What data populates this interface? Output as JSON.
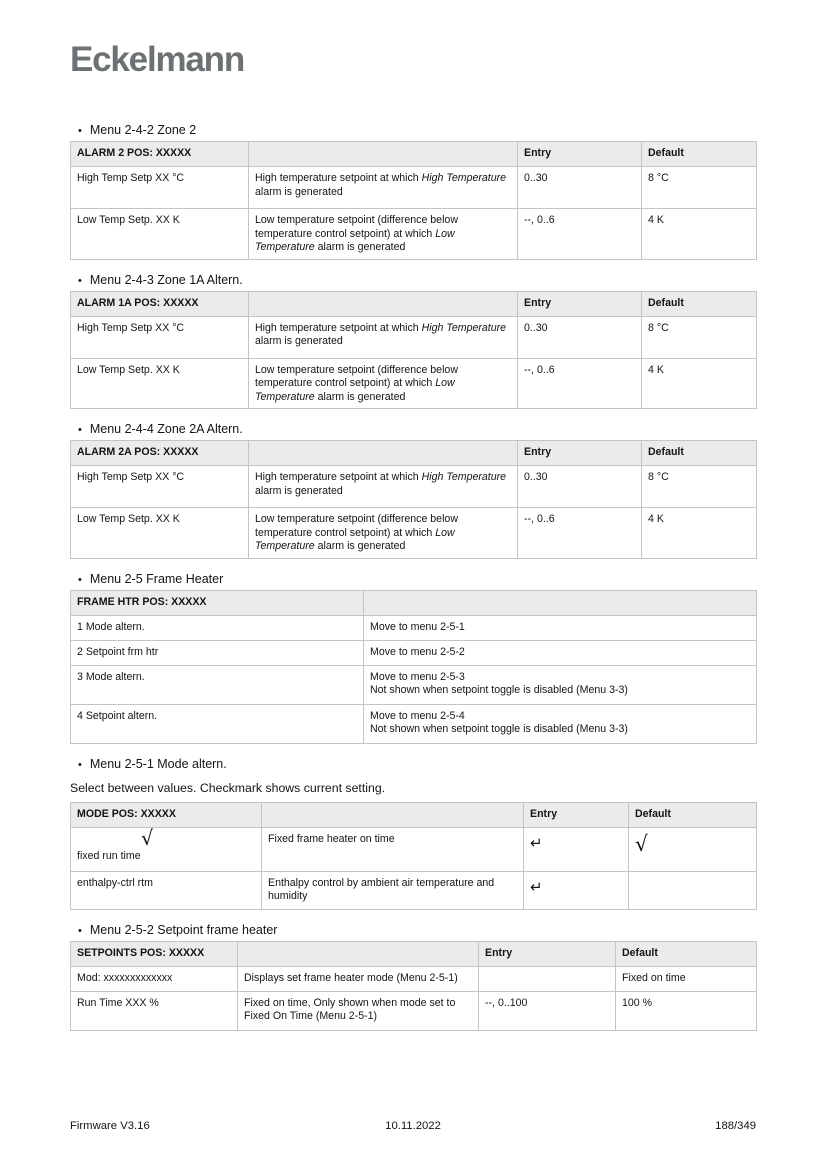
{
  "logo_text": "Eckelmann",
  "symbols": {
    "bullet": "•",
    "enter": "↵",
    "check": "√"
  },
  "colors": {
    "logo_gray": "#6c7173",
    "table_header_bg": "#ebebeb",
    "table_border": "#c4c4c4"
  },
  "alarm_sections": [
    {
      "menu_title": "Menu 2-4-2 Zone 2",
      "header_col1": "ALARM 2 POS: XXXXX",
      "header_entry": "Entry",
      "header_default": "Default",
      "rows": [
        {
          "label": "High Temp Setp XX °C",
          "desc_pre": "High temperature setpoint at which ",
          "desc_italic": "High Temperature",
          "desc_post": " alarm is generated",
          "entry": "0..30",
          "default": "8 °C"
        },
        {
          "label": "Low Temp Setp. XX K",
          "desc_pre": "Low temperature setpoint (difference below temperature control setpoint) at which ",
          "desc_italic": "Low Temperature",
          "desc_post": " alarm is generated",
          "entry": "--, 0..6",
          "default": "4 K"
        }
      ]
    },
    {
      "menu_title": "Menu 2-4-3 Zone 1A Altern.",
      "header_col1": "ALARM 1A POS: XXXXX",
      "header_entry": "Entry",
      "header_default": "Default",
      "rows": [
        {
          "label": "High Temp Setp XX °C",
          "desc_pre": "High temperature setpoint at which ",
          "desc_italic": "High Temperature",
          "desc_post": " alarm is generated",
          "entry": "0..30",
          "default": "8 °C"
        },
        {
          "label": "Low Temp Setp. XX K",
          "desc_pre": "Low temperature setpoint (difference below temperature control setpoint) at which ",
          "desc_italic": "Low Temperature",
          "desc_post": " alarm is generated",
          "entry": "--, 0..6",
          "default": "4 K"
        }
      ]
    },
    {
      "menu_title": "Menu 2-4-4 Zone 2A Altern.",
      "header_col1": "ALARM 2A POS: XXXXX",
      "header_entry": "Entry",
      "header_default": "Default",
      "rows": [
        {
          "label": "High Temp Setp XX °C",
          "desc_pre": "High temperature setpoint at which ",
          "desc_italic": "High Temperature",
          "desc_post": " alarm is generated",
          "entry": "0..30",
          "default": "8 °C"
        },
        {
          "label": "Low Temp Setp. XX K",
          "desc_pre": "Low temperature setpoint (difference below temperature control setpoint) at which ",
          "desc_italic": "Low Temperature",
          "desc_post": " alarm is generated",
          "entry": "--, 0..6",
          "default": "4 K"
        }
      ]
    }
  ],
  "frame_heater": {
    "menu_title": "Menu 2-5 Frame Heater",
    "header_col1": "FRAME HTR POS: XXXXX",
    "rows": [
      {
        "label": "1 Mode altern.",
        "line1": "Move to menu 2-5-1",
        "line2": ""
      },
      {
        "label": "2 Setpoint frm htr",
        "line1": "Move to menu 2-5-2",
        "line2": ""
      },
      {
        "label": "3 Mode altern.",
        "line1": "Move to menu 2-5-3",
        "line2": "Not shown when setpoint toggle is disabled (Menu 3-3)"
      },
      {
        "label": "4 Setpoint altern.",
        "line1": "Move to menu 2-5-4",
        "line2": "Not shown when setpoint toggle is disabled (Menu 3-3)"
      }
    ]
  },
  "mode_section": {
    "menu_title": "Menu 2-5-1 Mode altern.",
    "intro": "Select between values. Checkmark shows current setting.",
    "header_col1": "MODE POS: XXXXX",
    "header_entry": "Entry",
    "header_default": "Default",
    "rows": [
      {
        "label": "fixed run time",
        "label_check": "√",
        "desc": "Fixed frame heater on time",
        "entry_symbol": "↵",
        "default_symbol": "√"
      },
      {
        "label": "enthalpy-ctrl rtm",
        "label_check": "",
        "desc": "Enthalpy control by ambient air temperature and humidity",
        "entry_symbol": "↵",
        "default_symbol": ""
      }
    ]
  },
  "setpoint_section": {
    "menu_title": "Menu 2-5-2 Setpoint frame heater",
    "header_col1": "SETPOINTS POS: XXXXX",
    "header_entry": "Entry",
    "header_default": "Default",
    "rows": [
      {
        "label": "Mod: xxxxxxxxxxxxx",
        "desc": "Displays set frame heater mode (Menu 2-5-1)",
        "entry": "",
        "default": "Fixed on time"
      },
      {
        "label": "Run Time XXX %",
        "desc": "Fixed on time, Only shown when mode set to Fixed On Time (Menu 2-5-1)",
        "entry": "--, 0..100",
        "default": "100 %"
      }
    ]
  },
  "footer": {
    "firmware": "Firmware V3.16",
    "date": "10.11.2022",
    "page": "188/349"
  }
}
